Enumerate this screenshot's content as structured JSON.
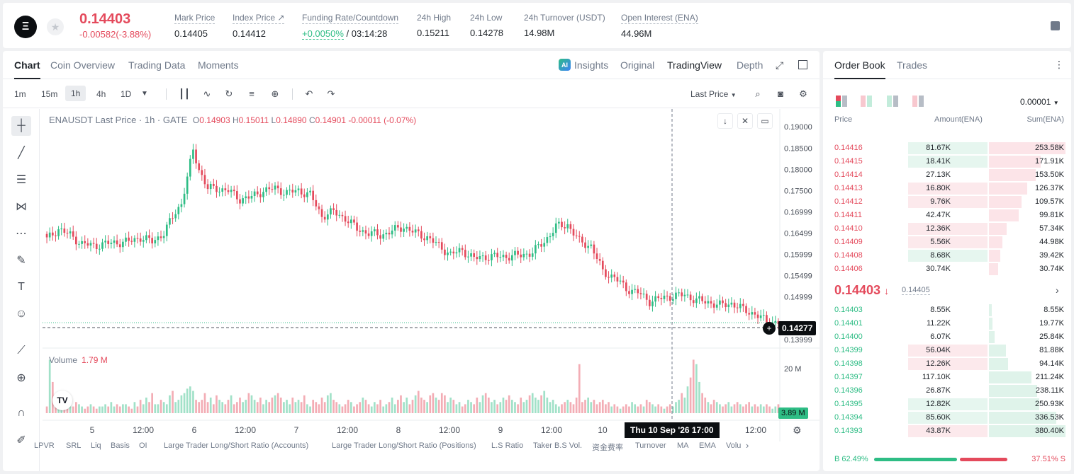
{
  "header": {
    "logo_text": "Ξ",
    "price": "0.14403",
    "change": "-0.00582(-3.88%)",
    "stats": [
      {
        "label": "Mark Price",
        "value": "0.14405"
      },
      {
        "label": "Index Price ↗",
        "value": "0.14412"
      },
      {
        "label": "Funding Rate/Countdown",
        "value_green": "+0.0050%",
        "value_rest": " / 03:14:28"
      },
      {
        "label": "24h High",
        "value": "0.15211"
      },
      {
        "label": "24h Low",
        "value": "0.14278"
      },
      {
        "label": "24h Turnover (USDT)",
        "value": "14.98M"
      },
      {
        "label": "Open Interest (ENA)",
        "value": "44.96M"
      }
    ]
  },
  "chart_tabs": [
    "Chart",
    "Coin Overview",
    "Trading Data",
    "Moments"
  ],
  "view_tabs": {
    "insights": "Insights",
    "original": "Original",
    "tradingview": "TradingView",
    "depth": "Depth"
  },
  "intervals": [
    "1m",
    "15m",
    "1h",
    "4h",
    "1D"
  ],
  "last_price_label": "Last Price",
  "chart_legend": {
    "symbol": "ENAUSDT Last Price · 1h · GATE",
    "o_label": "O",
    "o": "0.14903",
    "h_label": "H",
    "h": "0.15011",
    "l_label": "L",
    "l": "0.14890",
    "c_label": "C",
    "c": "0.14901",
    "chg": "-0.00011 (-0.07%)"
  },
  "volume_legend": {
    "label": "Volume",
    "value": "1.79 M"
  },
  "price_tag": "0.14277",
  "volume_tag": "3.89 M",
  "crosshair_time": "Thu 10 Sep '26   17:00",
  "indicators": [
    "LPVR",
    "SRL",
    "Liq",
    "Basis",
    "OI",
    "Large Trader Long/Short Ratio (Accounts)",
    "Large Trader Long/Short Ratio (Positions)",
    "L.S Ratio",
    "Taker B.S Vol.",
    "资金费率",
    "Turnover",
    "MA",
    "EMA",
    "Volu"
  ],
  "colors": {
    "up": "#2ebd85",
    "down": "#e44a5c"
  },
  "chart_data": {
    "type": "candlestick",
    "title": "ENAUSDT Last Price · 1h · GATE",
    "y_ticks": [
      "0.19000",
      "0.18500",
      "0.18000",
      "0.17500",
      "0.16999",
      "0.16499",
      "0.15999",
      "0.15499",
      "0.14999",
      "0.13999"
    ],
    "ylim": [
      0.1393,
      0.1912
    ],
    "x_ticks": [
      "5",
      "12:00",
      "6",
      "12:00",
      "7",
      "12:00",
      "8",
      "12:00",
      "9",
      "12:00",
      "10",
      "12:00"
    ],
    "volume_ticks": [
      "20 M"
    ],
    "volume_ylim": [
      0,
      27
    ],
    "close_anchors": [
      [
        0,
        0.1635
      ],
      [
        4,
        0.166
      ],
      [
        8,
        0.1645
      ],
      [
        12,
        0.1625
      ],
      [
        16,
        0.162
      ],
      [
        20,
        0.1625
      ],
      [
        24,
        0.1628
      ],
      [
        28,
        0.163
      ],
      [
        32,
        0.164
      ],
      [
        36,
        0.163
      ],
      [
        40,
        0.165
      ],
      [
        44,
        0.17
      ],
      [
        46,
        0.172
      ],
      [
        48,
        0.178
      ],
      [
        50,
        0.1845
      ],
      [
        52,
        0.18
      ],
      [
        55,
        0.1755
      ],
      [
        58,
        0.1755
      ],
      [
        62,
        0.175
      ],
      [
        66,
        0.173
      ],
      [
        70,
        0.1735
      ],
      [
        74,
        0.175
      ],
      [
        78,
        0.1755
      ],
      [
        82,
        0.1745
      ],
      [
        86,
        0.175
      ],
      [
        90,
        0.174
      ],
      [
        94,
        0.169
      ],
      [
        98,
        0.17
      ],
      [
        102,
        0.1685
      ],
      [
        106,
        0.166
      ],
      [
        110,
        0.165
      ],
      [
        114,
        0.1645
      ],
      [
        118,
        0.1655
      ],
      [
        122,
        0.1665
      ],
      [
        126,
        0.165
      ],
      [
        130,
        0.164
      ],
      [
        134,
        0.162
      ],
      [
        138,
        0.16
      ],
      [
        142,
        0.161
      ],
      [
        146,
        0.159
      ],
      [
        150,
        0.1595
      ],
      [
        156,
        0.1595
      ],
      [
        162,
        0.1598
      ],
      [
        166,
        0.1605
      ],
      [
        170,
        0.163
      ],
      [
        174,
        0.1665
      ],
      [
        178,
        0.167
      ],
      [
        182,
        0.163
      ],
      [
        186,
        0.162
      ],
      [
        188,
        0.159
      ],
      [
        190,
        0.156
      ],
      [
        194,
        0.1545
      ],
      [
        198,
        0.152
      ],
      [
        202,
        0.151
      ],
      [
        206,
        0.149
      ],
      [
        212,
        0.15
      ],
      [
        218,
        0.1505
      ],
      [
        222,
        0.1492
      ],
      [
        226,
        0.1488
      ],
      [
        230,
        0.148
      ],
      [
        234,
        0.1485
      ],
      [
        238,
        0.147
      ],
      [
        242,
        0.146
      ],
      [
        246,
        0.1442
      ],
      [
        250,
        0.144
      ]
    ],
    "volumes": [
      3,
      24,
      14,
      4,
      3,
      3,
      5,
      2,
      3,
      3,
      5,
      4,
      3,
      2,
      3,
      4,
      3,
      2,
      3,
      3,
      4,
      3,
      5,
      3,
      4,
      3,
      4,
      4,
      3,
      2,
      5,
      3,
      6,
      4,
      7,
      5,
      9,
      4,
      4,
      6,
      5,
      4,
      8,
      10,
      5,
      6,
      8,
      9,
      11,
      12,
      10,
      6,
      5,
      6,
      9,
      5,
      7,
      4,
      8,
      6,
      5,
      4,
      6,
      8,
      4,
      5,
      7,
      5,
      6,
      9,
      8,
      6,
      5,
      7,
      4,
      6,
      5,
      7,
      8,
      9,
      7,
      5,
      6,
      4,
      7,
      5,
      6,
      5,
      8,
      4,
      3,
      6,
      5,
      4,
      7,
      5,
      8,
      9,
      6,
      5,
      4,
      3,
      4,
      6,
      5,
      3,
      4,
      5,
      7,
      6,
      4,
      3,
      5,
      4,
      6,
      3,
      4,
      5,
      7,
      4,
      6,
      8,
      5,
      7,
      4,
      6,
      8,
      10,
      7,
      6,
      5,
      8,
      9,
      7,
      6,
      9,
      8,
      5,
      7,
      6,
      4,
      5,
      3,
      4,
      6,
      5,
      4,
      7,
      5,
      8,
      9,
      7,
      5,
      6,
      4,
      5,
      7,
      6,
      8,
      6,
      5,
      4,
      7,
      5,
      6,
      8,
      9,
      7,
      6,
      8,
      10,
      7,
      5,
      6,
      4,
      3,
      4,
      5,
      6,
      5,
      4,
      7,
      22,
      5,
      6,
      7,
      5,
      6,
      4,
      5,
      6,
      4,
      5,
      3,
      4,
      3,
      2,
      3,
      4,
      3,
      5,
      4,
      3,
      4,
      3,
      6,
      5,
      4,
      3,
      4,
      3,
      2,
      3,
      4,
      3,
      5,
      6,
      9,
      7,
      12,
      16,
      24,
      22,
      14,
      9,
      7,
      5,
      4,
      6,
      5,
      4,
      3,
      4,
      5,
      3,
      4,
      5,
      4,
      3,
      4,
      5,
      3,
      4,
      3,
      4,
      3,
      4,
      3,
      2,
      3,
      4,
      3,
      4
    ]
  },
  "order_book": {
    "tabs": [
      "Order Book",
      "Trades"
    ],
    "precision": "0.00001",
    "headers": {
      "price": "Price",
      "amount": "Amount(ENA)",
      "sum": "Sum(ENA)"
    },
    "asks": [
      {
        "price": "0.14416",
        "amount": "81.67K",
        "sum": "253.58K",
        "amt_frac": 1.0,
        "sum_frac": 1.0,
        "amt_color": "g"
      },
      {
        "price": "0.14415",
        "amount": "18.41K",
        "sum": "171.91K",
        "amt_frac": 1.0,
        "sum_frac": 0.68,
        "amt_color": "g"
      },
      {
        "price": "0.14414",
        "amount": "27.13K",
        "sum": "153.50K",
        "amt_frac": 0.0,
        "sum_frac": 0.61
      },
      {
        "price": "0.14413",
        "amount": "16.80K",
        "sum": "126.37K",
        "amt_frac": 1.0,
        "sum_frac": 0.5,
        "amt_color": "r"
      },
      {
        "price": "0.14412",
        "amount": "9.76K",
        "sum": "109.57K",
        "amt_frac": 1.0,
        "sum_frac": 0.43,
        "amt_color": "r"
      },
      {
        "price": "0.14411",
        "amount": "42.47K",
        "sum": "99.81K",
        "amt_frac": 0.0,
        "sum_frac": 0.39
      },
      {
        "price": "0.14410",
        "amount": "12.36K",
        "sum": "57.34K",
        "amt_frac": 1.0,
        "sum_frac": 0.23,
        "amt_color": "r"
      },
      {
        "price": "0.14409",
        "amount": "5.56K",
        "sum": "44.98K",
        "amt_frac": 1.0,
        "sum_frac": 0.18,
        "amt_color": "r"
      },
      {
        "price": "0.14408",
        "amount": "8.68K",
        "sum": "39.42K",
        "amt_frac": 1.0,
        "sum_frac": 0.15,
        "amt_color": "g"
      },
      {
        "price": "0.14406",
        "amount": "30.74K",
        "sum": "30.74K",
        "amt_frac": 0.0,
        "sum_frac": 0.12
      }
    ],
    "mid_price": "0.14403",
    "mid_arrow": "↓",
    "mid_mark": "0.14405",
    "bids": [
      {
        "price": "0.14403",
        "amount": "8.55K",
        "sum": "8.55K",
        "amt_frac": 0.0,
        "sum_frac": 0.02
      },
      {
        "price": "0.14401",
        "amount": "11.22K",
        "sum": "19.77K",
        "amt_frac": 0.0,
        "sum_frac": 0.05
      },
      {
        "price": "0.14400",
        "amount": "6.07K",
        "sum": "25.84K",
        "amt_frac": 0.0,
        "sum_frac": 0.07
      },
      {
        "price": "0.14399",
        "amount": "56.04K",
        "sum": "81.88K",
        "amt_frac": 1.0,
        "sum_frac": 0.22,
        "amt_color": "r"
      },
      {
        "price": "0.14398",
        "amount": "12.26K",
        "sum": "94.14K",
        "amt_frac": 1.0,
        "sum_frac": 0.25,
        "amt_color": "r"
      },
      {
        "price": "0.14397",
        "amount": "117.10K",
        "sum": "211.24K",
        "amt_frac": 0.0,
        "sum_frac": 0.56
      },
      {
        "price": "0.14396",
        "amount": "26.87K",
        "sum": "238.11K",
        "amt_frac": 0.0,
        "sum_frac": 0.63
      },
      {
        "price": "0.14395",
        "amount": "12.82K",
        "sum": "250.93K",
        "amt_frac": 1.0,
        "sum_frac": 0.66,
        "amt_color": "g"
      },
      {
        "price": "0.14394",
        "amount": "85.60K",
        "sum": "336.53K",
        "amt_frac": 1.0,
        "sum_frac": 0.88,
        "amt_color": "g"
      },
      {
        "price": "0.14393",
        "amount": "43.87K",
        "sum": "380.40K",
        "amt_frac": 1.0,
        "sum_frac": 1.0,
        "amt_color": "r"
      }
    ],
    "buy_ratio": "B 62.49%",
    "sell_ratio": "37.51% S",
    "buy_frac": 0.6249
  }
}
